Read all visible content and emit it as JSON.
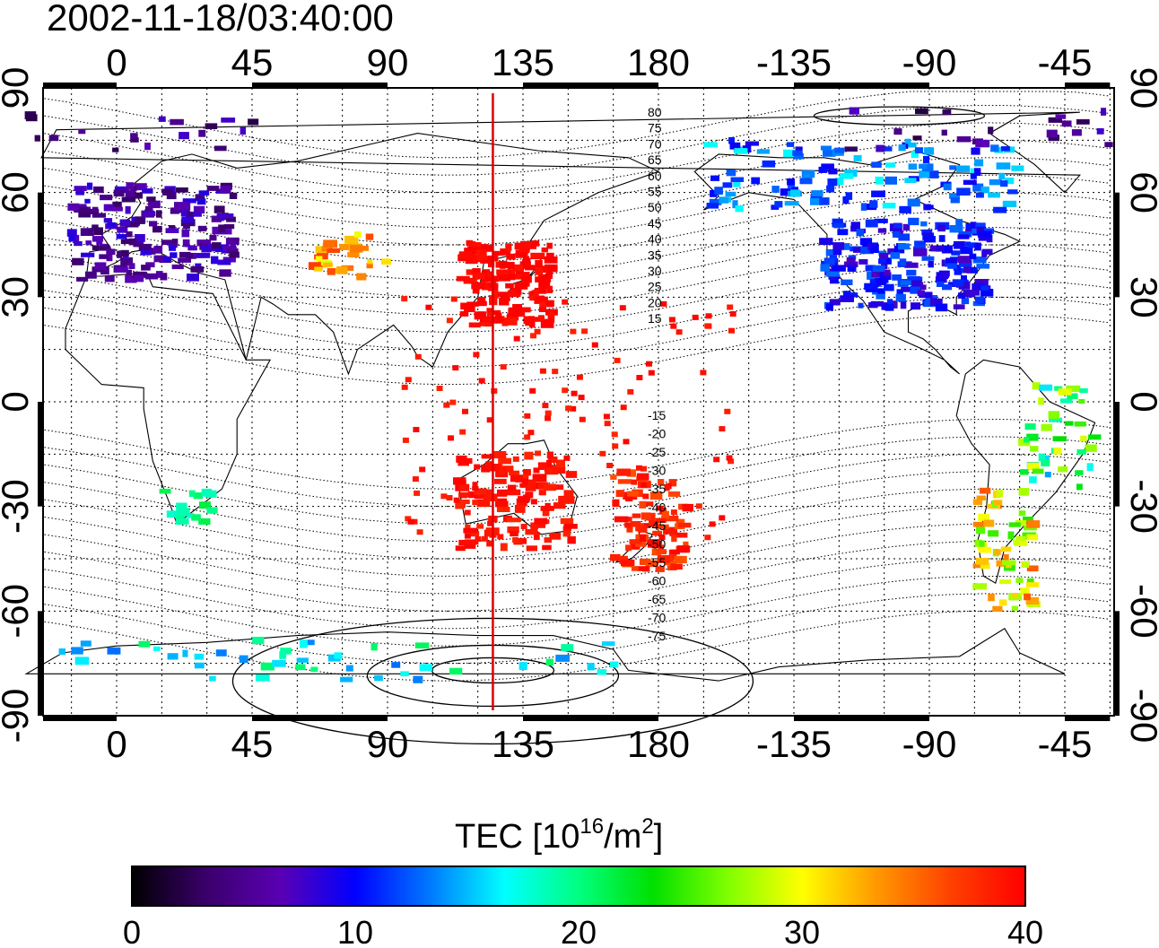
{
  "timestamp": "2002-11-18/03:40:00",
  "map": {
    "x_ticks": [
      "0",
      "45",
      "90",
      "135",
      "180",
      "-135",
      "-90",
      "-45"
    ],
    "y_ticks": [
      "90",
      "60",
      "30",
      "0",
      "-30",
      "-60",
      "-90"
    ],
    "grid": "dotted every 15 degrees",
    "meridian_marker_longitude": 125,
    "meridian_marker_color": "#e00000",
    "contour_labels_north": [
      "80",
      "75",
      "70",
      "65",
      "60",
      "55",
      "50",
      "45",
      "40",
      "35",
      "30",
      "25",
      "20",
      "15"
    ],
    "contour_labels_south": [
      "-15",
      "-20",
      "-25",
      "-30",
      "-35",
      "-40",
      "-45",
      "-50",
      "-55",
      "-60",
      "-65",
      "-70",
      "-75"
    ]
  },
  "colorbar": {
    "title": "TEC  [10",
    "title_sup1": "16",
    "title_mid": "/m",
    "title_sup2": "2",
    "title_end": "]",
    "ticks": [
      "0",
      "10",
      "20",
      "30",
      "40"
    ],
    "range": [
      0,
      40
    ],
    "colors": [
      "#000000",
      "#3a006a",
      "#5a00b4",
      "#0000ff",
      "#0078ff",
      "#00ffff",
      "#00ff80",
      "#00e000",
      "#80ff00",
      "#ffff00",
      "#ff9900",
      "#ff4000",
      "#ff0000"
    ]
  },
  "tec_regions": [
    {
      "name": "Europe",
      "value": 6
    },
    {
      "name": "North America",
      "value": 10
    },
    {
      "name": "Alaska",
      "value": 13
    },
    {
      "name": "East Asia / Japan",
      "value": 40
    },
    {
      "name": "Australia",
      "value": 39
    },
    {
      "name": "New Zealand",
      "value": 38
    },
    {
      "name": "South America south",
      "value": 30
    },
    {
      "name": "South America east",
      "value": 22
    },
    {
      "name": "Antarctica",
      "value": 17
    },
    {
      "name": "Arctic",
      "value": 5
    },
    {
      "name": "Southern Africa",
      "value": 19
    },
    {
      "name": "Central Asia",
      "value": 33
    }
  ]
}
